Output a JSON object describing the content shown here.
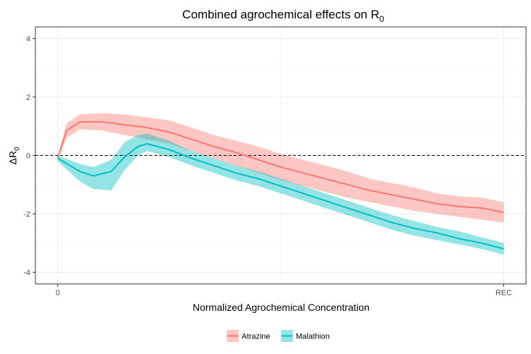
{
  "chart_data": {
    "type": "area",
    "title": "Combined agrochemical effects on R",
    "title_subscript": "0",
    "xlabel": "Normalized Agrochemical Concentration",
    "ylabel": "ΔR",
    "ylabel_subscript": "0",
    "xlim": [
      -0.05,
      1.05
    ],
    "ylim": [
      -4.4,
      4.4
    ],
    "x_ticks": [
      0,
      1
    ],
    "x_tick_labels": [
      "0",
      "REC"
    ],
    "y_ticks": [
      -4,
      -2,
      0,
      2,
      4
    ],
    "y_tick_labels": [
      "-4",
      "-2",
      "0",
      "2",
      "4"
    ],
    "reference_line_y": 0,
    "grid": true,
    "legend_position": "bottom",
    "series": [
      {
        "name": "Atrazine",
        "line_color": "#F8766D",
        "fill_color": "#F8766D",
        "x": [
          0,
          0.02,
          0.05,
          0.1,
          0.15,
          0.2,
          0.25,
          0.3,
          0.35,
          0.4,
          0.45,
          0.5,
          0.55,
          0.6,
          0.65,
          0.7,
          0.75,
          0.8,
          0.85,
          0.9,
          0.95,
          1.0
        ],
        "y": [
          -0.1,
          0.85,
          1.15,
          1.15,
          1.05,
          0.95,
          0.8,
          0.55,
          0.3,
          0.1,
          -0.15,
          -0.4,
          -0.6,
          -0.8,
          -1.0,
          -1.2,
          -1.35,
          -1.5,
          -1.65,
          -1.75,
          -1.8,
          -1.95
        ],
        "lower": [
          -0.15,
          0.6,
          0.9,
          0.85,
          0.7,
          0.55,
          0.4,
          0.15,
          -0.1,
          -0.35,
          -0.6,
          -0.85,
          -1.05,
          -1.25,
          -1.45,
          -1.6,
          -1.75,
          -1.9,
          -2.0,
          -2.1,
          -2.2,
          -2.3
        ],
        "upper": [
          -0.05,
          1.1,
          1.4,
          1.45,
          1.4,
          1.3,
          1.2,
          0.95,
          0.7,
          0.5,
          0.3,
          0.05,
          -0.15,
          -0.35,
          -0.55,
          -0.8,
          -0.95,
          -1.1,
          -1.3,
          -1.4,
          -1.45,
          -1.6
        ]
      },
      {
        "name": "Malathion",
        "line_color": "#00BFC4",
        "fill_color": "#00BFC4",
        "x": [
          0,
          0.05,
          0.08,
          0.12,
          0.15,
          0.18,
          0.2,
          0.25,
          0.3,
          0.35,
          0.4,
          0.45,
          0.5,
          0.55,
          0.6,
          0.65,
          0.7,
          0.75,
          0.8,
          0.85,
          0.9,
          0.95,
          1.0
        ],
        "y": [
          -0.1,
          -0.55,
          -0.7,
          -0.55,
          -0.05,
          0.3,
          0.4,
          0.2,
          -0.1,
          -0.35,
          -0.6,
          -0.8,
          -1.05,
          -1.3,
          -1.55,
          -1.8,
          -2.05,
          -2.3,
          -2.5,
          -2.65,
          -2.85,
          -3.0,
          -3.2
        ],
        "lower": [
          -0.2,
          -0.9,
          -1.15,
          -1.2,
          -0.5,
          0.0,
          0.15,
          -0.05,
          -0.35,
          -0.6,
          -0.85,
          -1.05,
          -1.3,
          -1.55,
          -1.8,
          -2.05,
          -2.3,
          -2.55,
          -2.75,
          -2.9,
          -3.05,
          -3.2,
          -3.4
        ],
        "upper": [
          0.0,
          -0.3,
          -0.4,
          -0.15,
          0.45,
          0.7,
          0.75,
          0.5,
          0.15,
          -0.1,
          -0.35,
          -0.55,
          -0.8,
          -1.05,
          -1.3,
          -1.55,
          -1.8,
          -2.05,
          -2.25,
          -2.45,
          -2.6,
          -2.8,
          -3.0
        ]
      }
    ]
  }
}
